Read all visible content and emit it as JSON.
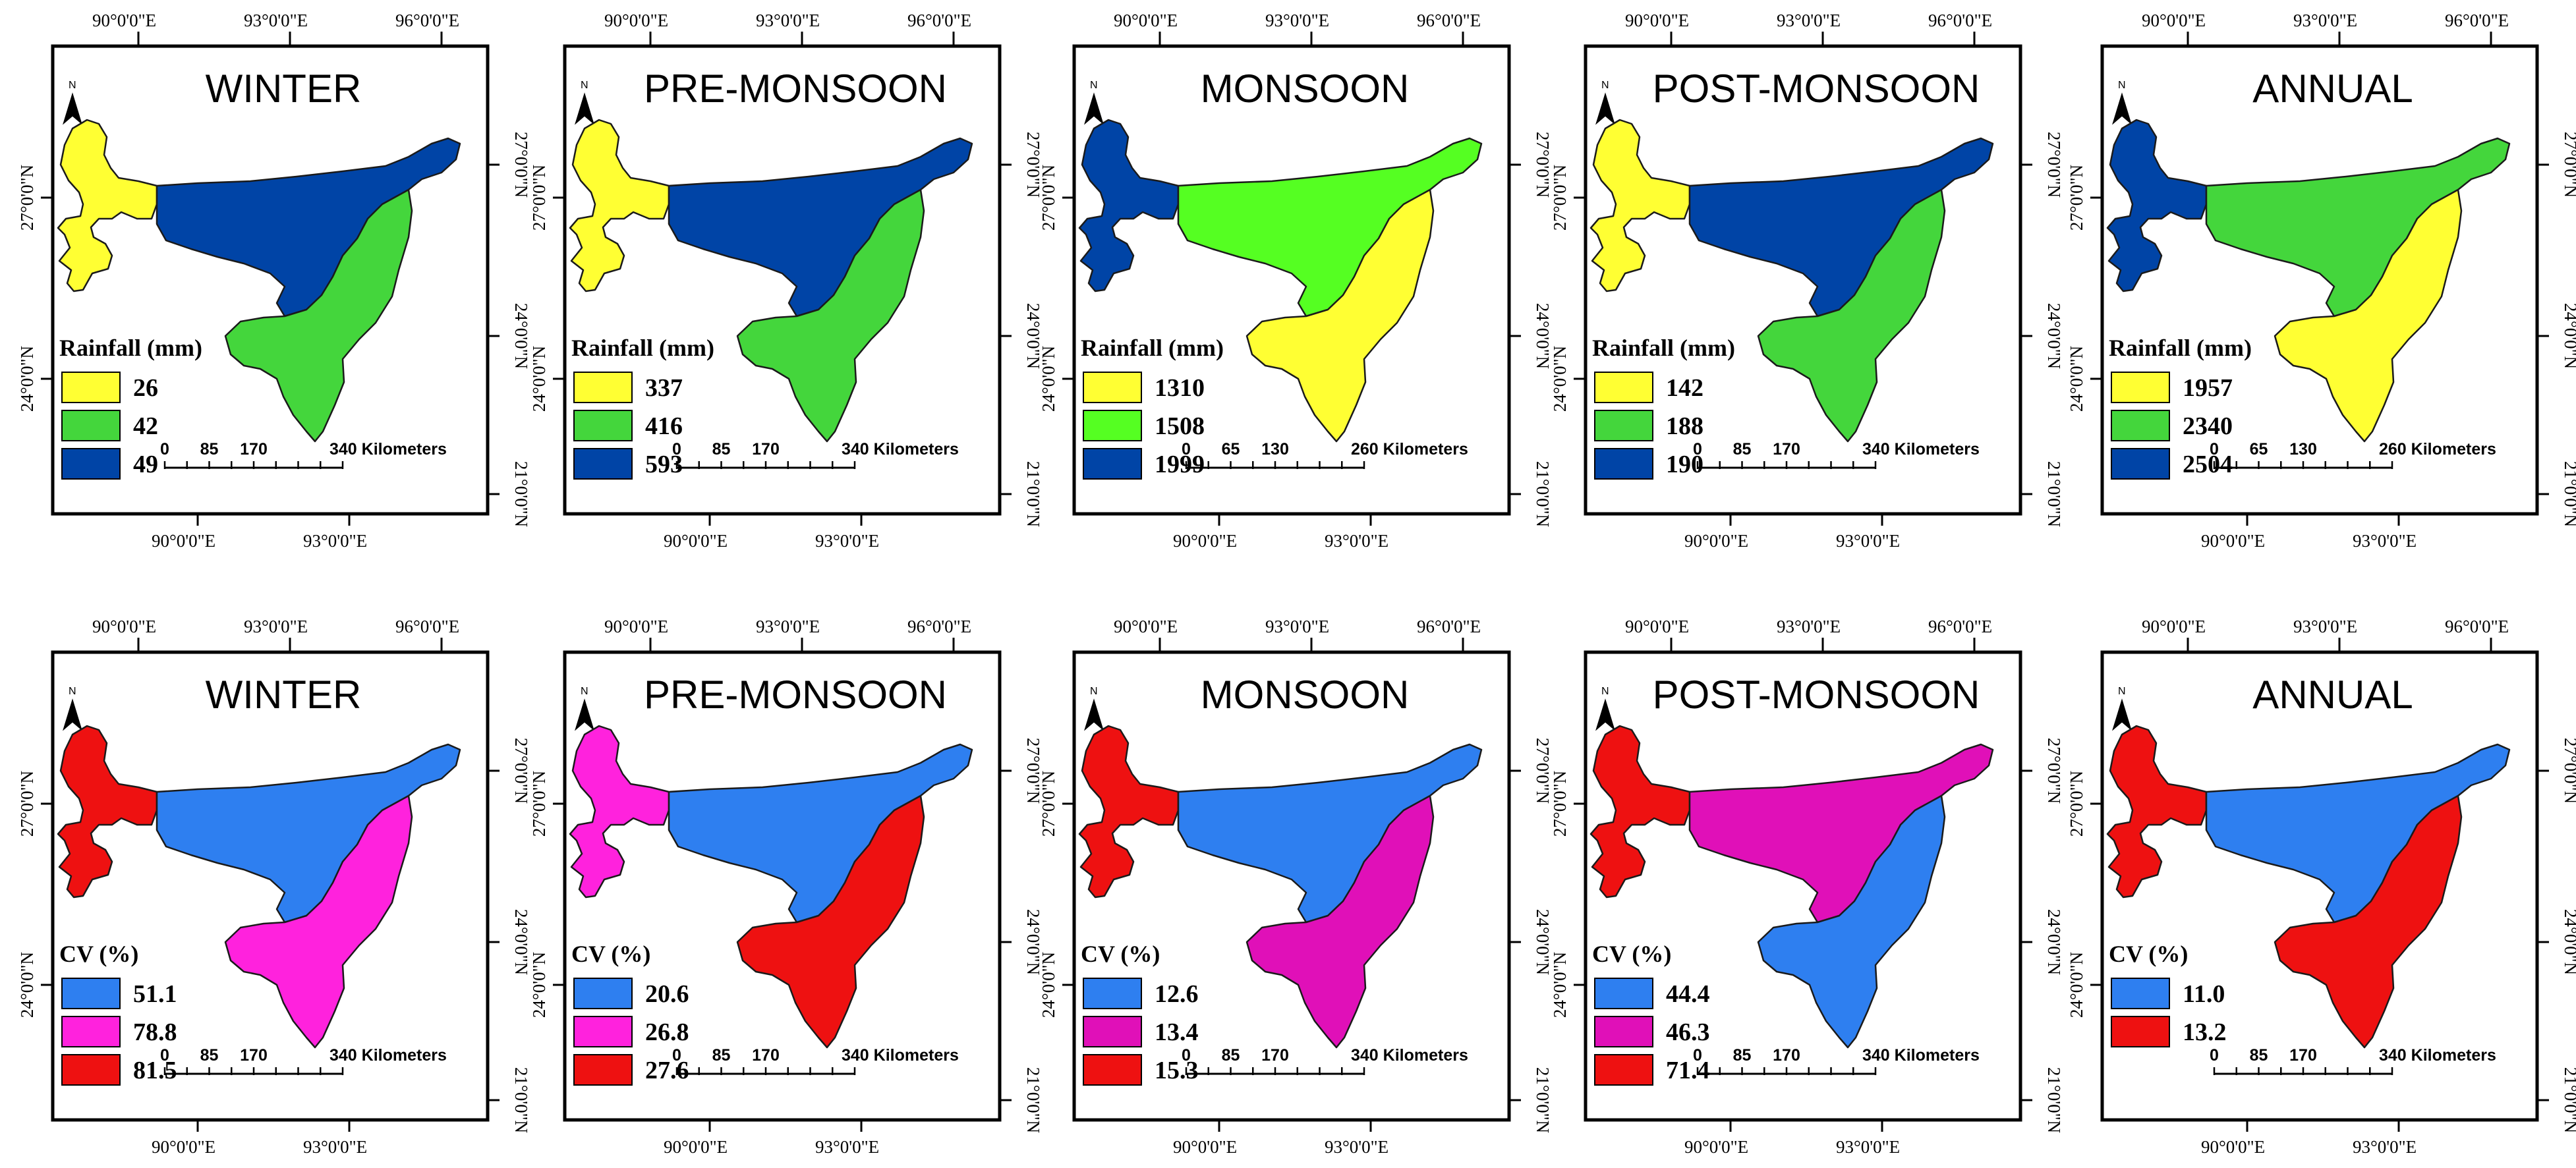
{
  "colors": {
    "yellow": "#FFFF33",
    "green_mid": "#44D63C",
    "green_lime": "#55FF22",
    "blue_dark": "#0044A6",
    "blue_light": "#2E7FF0",
    "magenta": "#FF22DD",
    "magenta_dark": "#E010B8",
    "red": "#EE1111"
  },
  "coords": {
    "lon90": "90°0'0\"E",
    "lon93": "93°0'0\"E",
    "lon96": "96°0'0\"E",
    "lat27": "27°0'0\"N",
    "lat24": "24°0'0\"N",
    "lat21": "21°0'0\"N"
  },
  "north_label": "N",
  "rows": [
    {
      "legend_title": "Rainfall (mm)",
      "panels": [
        {
          "title": "WINTER",
          "legend": [
            {
              "label": "26",
              "color": "#FFFF33"
            },
            {
              "label": "42",
              "color": "#44D63C"
            },
            {
              "label": "49",
              "color": "#0044A6"
            }
          ],
          "region_colors": {
            "west": "#FFFF33",
            "central": "#0044A6",
            "south": "#44D63C"
          },
          "scale": {
            "ticks": [
              "0",
              "85",
              "170"
            ],
            "end": "340 Kilometers"
          }
        },
        {
          "title": "PRE-MONSOON",
          "legend": [
            {
              "label": "337",
              "color": "#FFFF33"
            },
            {
              "label": "416",
              "color": "#44D63C"
            },
            {
              "label": "593",
              "color": "#0044A6"
            }
          ],
          "region_colors": {
            "west": "#FFFF33",
            "central": "#0044A6",
            "south": "#44D63C"
          },
          "scale": {
            "ticks": [
              "0",
              "85",
              "170"
            ],
            "end": "340 Kilometers"
          }
        },
        {
          "title": "MONSOON",
          "legend": [
            {
              "label": "1310",
              "color": "#FFFF33"
            },
            {
              "label": "1508",
              "color": "#55FF22"
            },
            {
              "label": "1999",
              "color": "#0044A6"
            }
          ],
          "region_colors": {
            "west": "#0044A6",
            "central": "#55FF22",
            "south": "#FFFF33"
          },
          "scale": {
            "ticks": [
              "0",
              "65",
              "130"
            ],
            "end": "260 Kilometers"
          }
        },
        {
          "title": "POST-MONSOON",
          "legend": [
            {
              "label": "142",
              "color": "#FFFF33"
            },
            {
              "label": "188",
              "color": "#44D63C"
            },
            {
              "label": "190",
              "color": "#0044A6"
            }
          ],
          "region_colors": {
            "west": "#FFFF33",
            "central": "#0044A6",
            "south": "#44D63C"
          },
          "scale": {
            "ticks": [
              "0",
              "85",
              "170"
            ],
            "end": "340 Kilometers"
          }
        },
        {
          "title": "ANNUAL",
          "legend": [
            {
              "label": "1957",
              "color": "#FFFF33"
            },
            {
              "label": "2340",
              "color": "#44D63C"
            },
            {
              "label": "2504",
              "color": "#0044A6"
            }
          ],
          "region_colors": {
            "west": "#0044A6",
            "central": "#44D63C",
            "south": "#FFFF33"
          },
          "scale": {
            "ticks": [
              "0",
              "65",
              "130"
            ],
            "end": "260 Kilometers"
          }
        }
      ]
    },
    {
      "legend_title": "CV (%)",
      "panels": [
        {
          "title": "WINTER",
          "legend": [
            {
              "label": "51.1",
              "color": "#2E7FF0"
            },
            {
              "label": "78.8",
              "color": "#FF22DD"
            },
            {
              "label": "81.5",
              "color": "#EE1111"
            }
          ],
          "region_colors": {
            "west": "#EE1111",
            "central": "#2E7FF0",
            "south": "#FF22DD"
          },
          "scale": {
            "ticks": [
              "0",
              "85",
              "170"
            ],
            "end": "340 Kilometers"
          }
        },
        {
          "title": "PRE-MONSOON",
          "legend": [
            {
              "label": "20.6",
              "color": "#2E7FF0"
            },
            {
              "label": "26.8",
              "color": "#FF22DD"
            },
            {
              "label": "27.6",
              "color": "#EE1111"
            }
          ],
          "region_colors": {
            "west": "#FF22DD",
            "central": "#2E7FF0",
            "south": "#EE1111"
          },
          "scale": {
            "ticks": [
              "0",
              "85",
              "170"
            ],
            "end": "340 Kilometers"
          }
        },
        {
          "title": "MONSOON",
          "legend": [
            {
              "label": "12.6",
              "color": "#2E7FF0"
            },
            {
              "label": "13.4",
              "color": "#E010B8"
            },
            {
              "label": "15.3",
              "color": "#EE1111"
            }
          ],
          "region_colors": {
            "west": "#EE1111",
            "central": "#2E7FF0",
            "south": "#E010B8"
          },
          "scale": {
            "ticks": [
              "0",
              "85",
              "170"
            ],
            "end": "340 Kilometers"
          }
        },
        {
          "title": "POST-MONSOON",
          "legend": [
            {
              "label": "44.4",
              "color": "#2E7FF0"
            },
            {
              "label": "46.3",
              "color": "#E010B8"
            },
            {
              "label": "71.4",
              "color": "#EE1111"
            }
          ],
          "region_colors": {
            "west": "#EE1111",
            "central": "#E010B8",
            "south": "#2E7FF0"
          },
          "scale": {
            "ticks": [
              "0",
              "85",
              "170"
            ],
            "end": "340 Kilometers"
          }
        },
        {
          "title": "ANNUAL",
          "legend": [
            {
              "label": "11.0",
              "color": "#2E7FF0"
            },
            {
              "label": "13.2",
              "color": "#EE1111"
            }
          ],
          "region_colors": {
            "west": "#EE1111",
            "central": "#2E7FF0",
            "south": "#EE1111"
          },
          "scale": {
            "ticks": [
              "0",
              "85",
              "170"
            ],
            "end": "340 Kilometers"
          }
        }
      ]
    }
  ]
}
